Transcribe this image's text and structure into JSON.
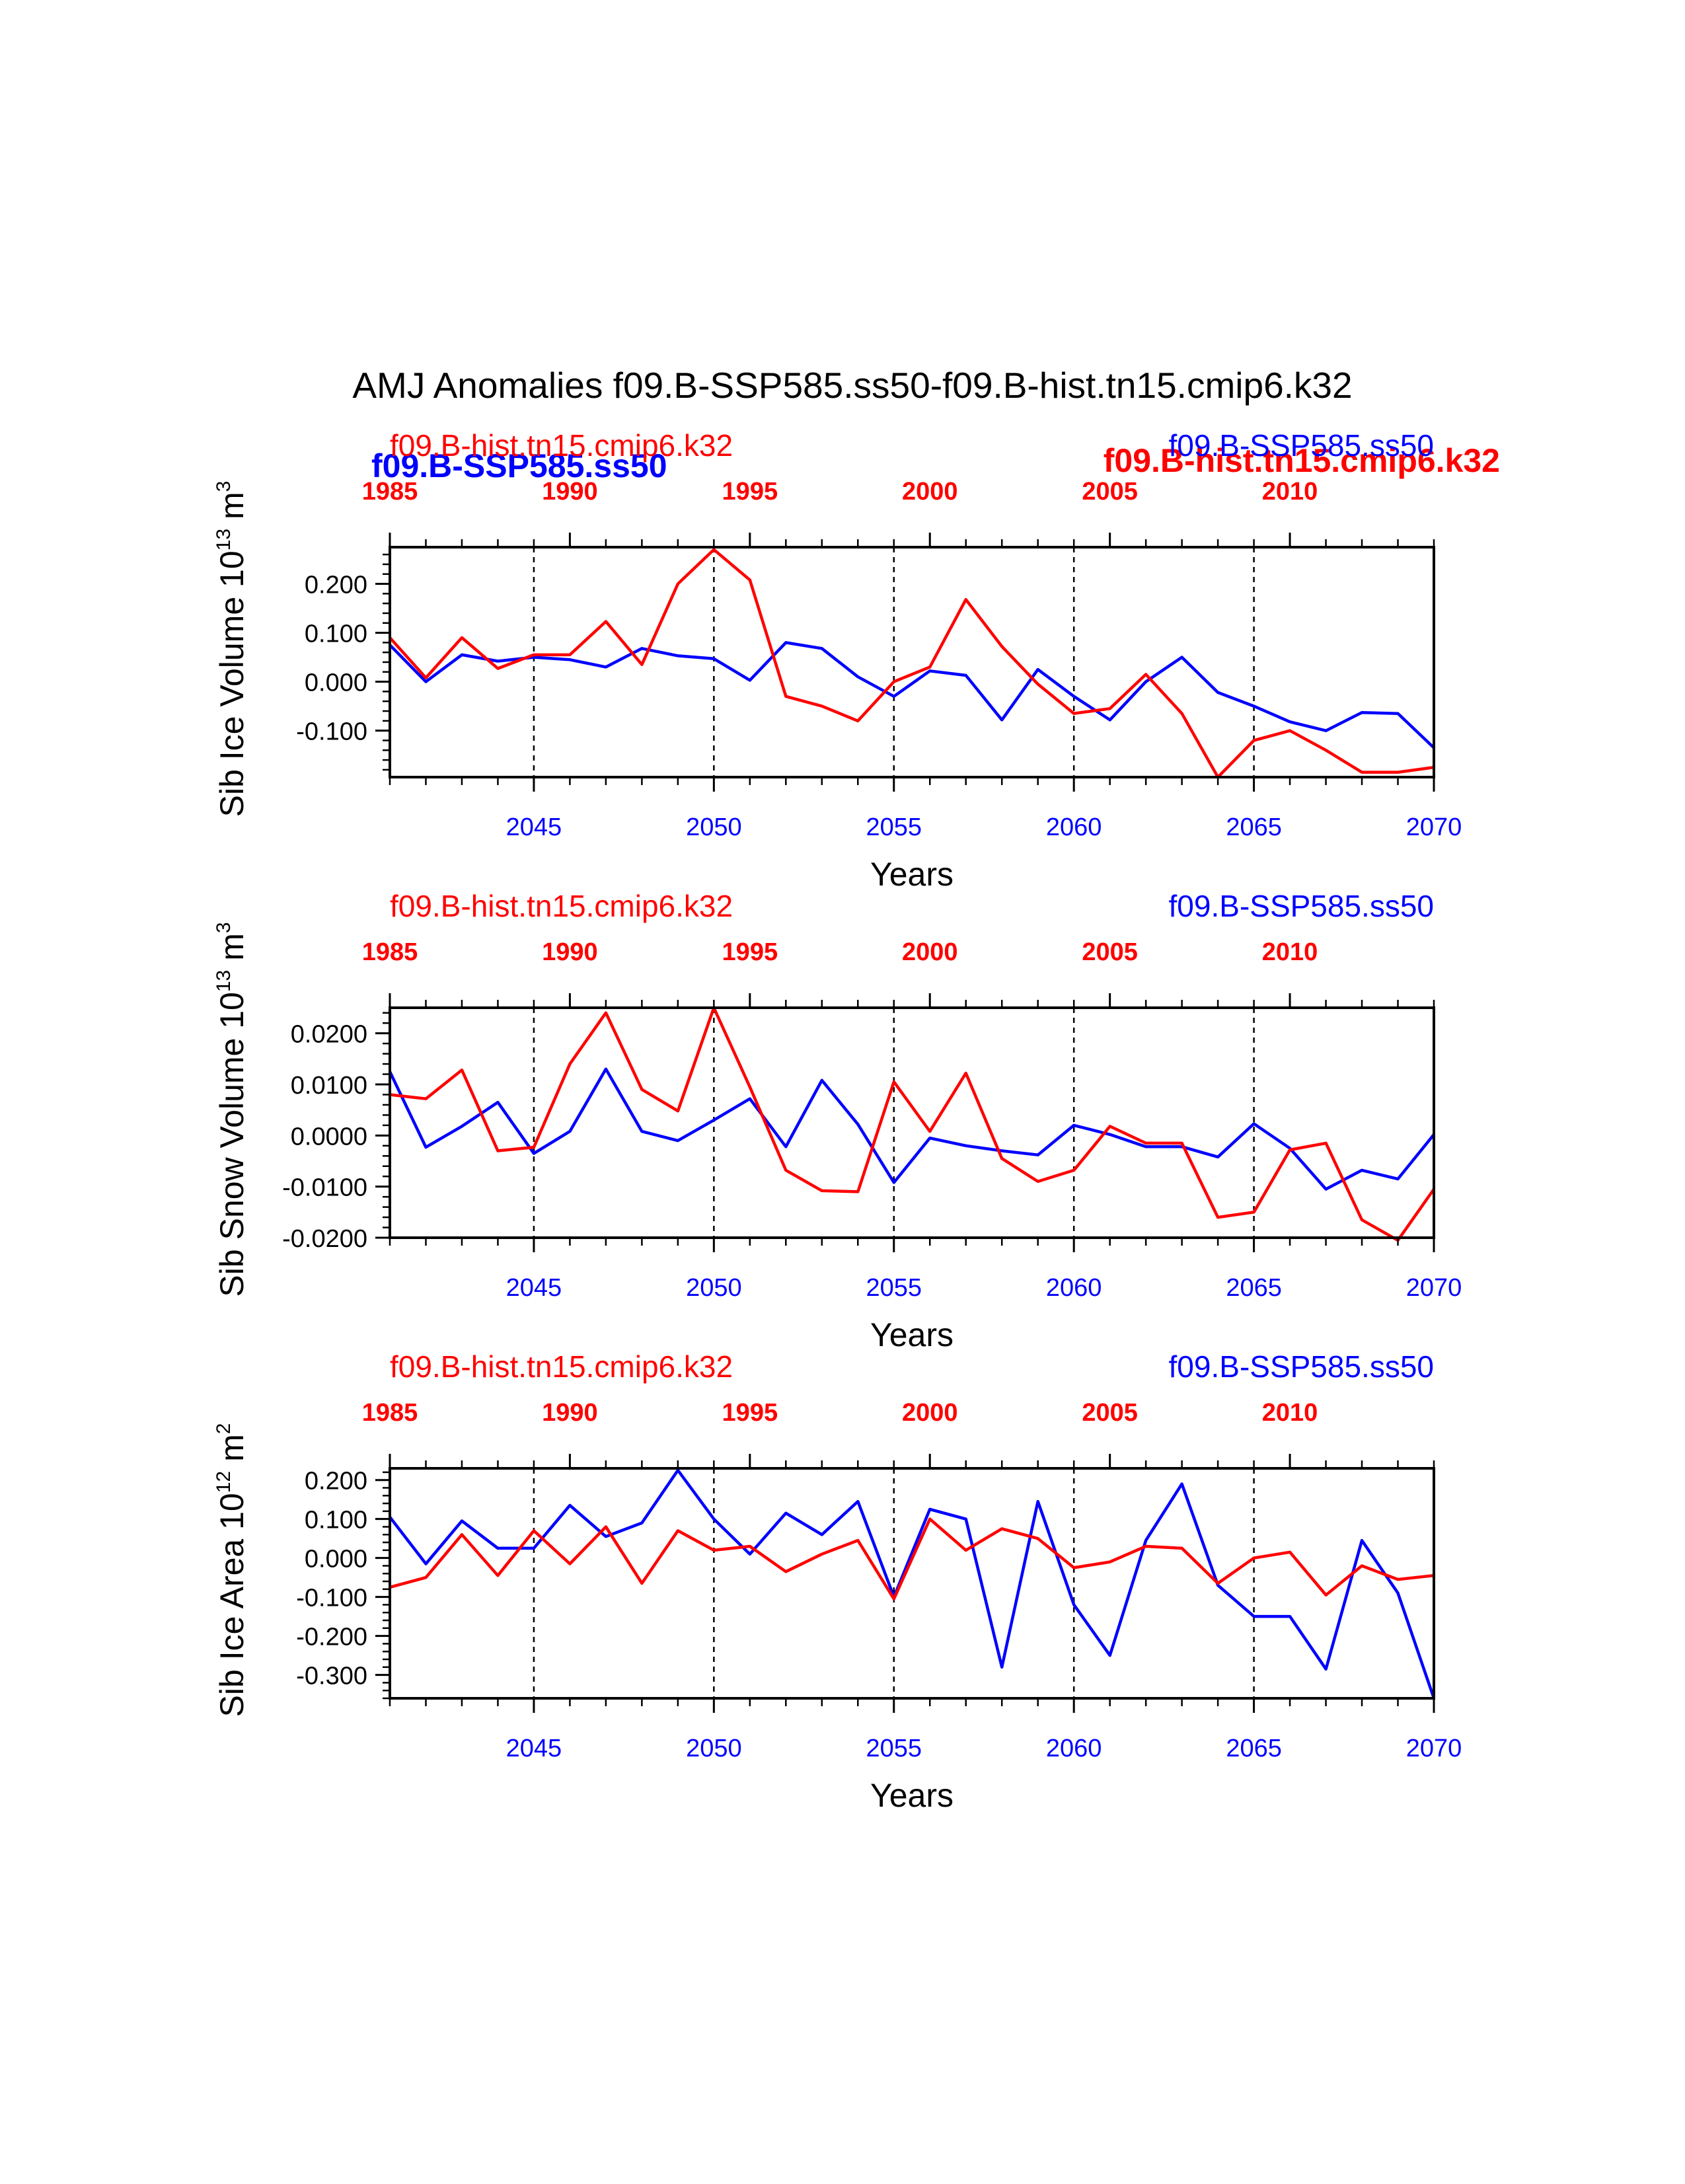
{
  "title": "AMJ Anomalies f09.B-SSP585.ss50-f09.B-hist.tn15.cmip6.k32",
  "colors": {
    "ssp": "#0000ff",
    "hist": "#ff0000",
    "axis": "#000000"
  },
  "top_overlap_labels": {
    "left_bold_blue": "f09.B-SSP585.ss50",
    "right_bold_red": "f09.B-hist.tn15.cmip6.k32"
  },
  "chart_data": [
    {
      "type": "line",
      "ylabel": "Sib Ice Volume 10",
      "ylabel_exp": "13",
      "ylabel_unit": "m",
      "ylabel_unit_exp": "3",
      "xlabel": "Years",
      "ylim": [
        -0.195,
        0.275
      ],
      "yticks": [
        -0.1,
        0.0,
        0.1,
        0.2
      ],
      "ytick_labels": [
        "-0.100",
        "0.000",
        "0.100",
        "0.200"
      ],
      "yminor_step": 0.02,
      "bottom_axis": {
        "range": [
          2041,
          2070
        ],
        "ticks": [
          2045,
          2050,
          2055,
          2060,
          2065,
          2070
        ],
        "labels": [
          "2045",
          "2050",
          "2055",
          "2060",
          "2065",
          "2070"
        ]
      },
      "top_axis": {
        "range": [
          1985,
          2014
        ],
        "ticks": [
          1985,
          1990,
          1995,
          2000,
          2005,
          2010
        ],
        "labels": [
          "1985",
          "1990",
          "1995",
          "2000",
          "2005",
          "2010"
        ]
      },
      "vlines": [
        2045,
        2050,
        2055,
        2060,
        2065
      ],
      "top_left_label": "f09.B-hist.tn15.cmip6.k32",
      "top_right_label": "f09.B-SSP585.ss50",
      "series": [
        {
          "name": "f09.B-SSP585.ss50",
          "axis": "bottom",
          "x": [
            2041,
            2042,
            2043,
            2044,
            2045,
            2046,
            2047,
            2048,
            2049,
            2050,
            2051,
            2052,
            2053,
            2054,
            2055,
            2056,
            2057,
            2058,
            2059,
            2060,
            2061,
            2062,
            2063,
            2064,
            2065,
            2066,
            2067,
            2068,
            2069,
            2070
          ],
          "values": [
            0.075,
            0.0,
            0.055,
            0.042,
            0.05,
            0.045,
            0.03,
            0.068,
            0.053,
            0.047,
            0.003,
            0.08,
            0.068,
            0.01,
            -0.03,
            0.022,
            0.013,
            -0.078,
            0.025,
            -0.03,
            -0.078,
            0.0,
            0.05,
            -0.022,
            -0.05,
            -0.082,
            -0.1,
            -0.063,
            -0.065,
            -0.135
          ]
        },
        {
          "name": "f09.B-hist.tn15.cmip6.k32",
          "axis": "top",
          "x": [
            1985,
            1986,
            1987,
            1988,
            1989,
            1990,
            1991,
            1992,
            1993,
            1994,
            1995,
            1996,
            1997,
            1998,
            1999,
            2000,
            2001,
            2002,
            2003,
            2004,
            2005,
            2006,
            2007,
            2008,
            2009,
            2010,
            2011,
            2012,
            2013,
            2014
          ],
          "values": [
            0.09,
            0.008,
            0.09,
            0.027,
            0.055,
            0.055,
            0.123,
            0.035,
            0.2,
            0.27,
            0.208,
            -0.03,
            -0.05,
            -0.08,
            0.0,
            0.03,
            0.168,
            0.072,
            -0.005,
            -0.065,
            -0.055,
            0.015,
            -0.065,
            -0.195,
            -0.12,
            -0.1,
            -0.14,
            -0.185,
            -0.185,
            -0.175
          ]
        }
      ]
    },
    {
      "type": "line",
      "ylabel": "Sib Snow Volume 10",
      "ylabel_exp": "13",
      "ylabel_unit": "m",
      "ylabel_unit_exp": "3",
      "xlabel": "Years",
      "ylim": [
        -0.02,
        0.025
      ],
      "yticks": [
        -0.02,
        -0.01,
        0.0,
        0.01,
        0.02
      ],
      "ytick_labels": [
        "-0.0200",
        "-0.0100",
        "0.0000",
        "0.0100",
        "0.0200"
      ],
      "yminor_step": 0.002,
      "bottom_axis": {
        "range": [
          2041,
          2070
        ],
        "ticks": [
          2045,
          2050,
          2055,
          2060,
          2065,
          2070
        ],
        "labels": [
          "2045",
          "2050",
          "2055",
          "2060",
          "2065",
          "2070"
        ]
      },
      "top_axis": {
        "range": [
          1985,
          2014
        ],
        "ticks": [
          1985,
          1990,
          1995,
          2000,
          2005,
          2010
        ],
        "labels": [
          "1985",
          "1990",
          "1995",
          "2000",
          "2005",
          "2010"
        ]
      },
      "vlines": [
        2045,
        2050,
        2055,
        2060,
        2065
      ],
      "top_left_label": "f09.B-hist.tn15.cmip6.k32",
      "top_right_label": "f09.B-SSP585.ss50",
      "series": [
        {
          "name": "f09.B-SSP585.ss50",
          "axis": "bottom",
          "x": [
            2041,
            2042,
            2043,
            2044,
            2045,
            2046,
            2047,
            2048,
            2049,
            2050,
            2051,
            2052,
            2053,
            2054,
            2055,
            2056,
            2057,
            2058,
            2059,
            2060,
            2061,
            2062,
            2063,
            2064,
            2065,
            2066,
            2067,
            2068,
            2069,
            2070
          ],
          "values": [
            0.0125,
            -0.0023,
            0.0018,
            0.0065,
            -0.0035,
            0.0008,
            0.013,
            0.0008,
            -0.001,
            0.003,
            0.0072,
            -0.0022,
            0.0108,
            0.0022,
            -0.0092,
            -0.0005,
            -0.002,
            -0.003,
            -0.0038,
            0.002,
            0.0002,
            -0.0022,
            -0.0022,
            -0.0042,
            0.0023,
            -0.0025,
            -0.0105,
            -0.0068,
            -0.0085,
            0.0002
          ]
        },
        {
          "name": "f09.B-hist.tn15.cmip6.k32",
          "axis": "top",
          "x": [
            1985,
            1986,
            1987,
            1988,
            1989,
            1990,
            1991,
            1992,
            1993,
            1994,
            1995,
            1996,
            1997,
            1998,
            1999,
            2000,
            2001,
            2002,
            2003,
            2004,
            2005,
            2006,
            2007,
            2008,
            2009,
            2010,
            2011,
            2012,
            2013,
            2014
          ],
          "values": [
            0.008,
            0.0072,
            0.0128,
            -0.003,
            -0.0023,
            0.014,
            0.024,
            0.009,
            0.0048,
            0.025,
            0.0095,
            -0.0068,
            -0.0108,
            -0.011,
            0.0105,
            0.0008,
            0.0122,
            -0.0045,
            -0.009,
            -0.0068,
            0.0018,
            -0.0015,
            -0.0015,
            -0.016,
            -0.015,
            -0.0028,
            -0.0015,
            -0.0165,
            -0.0205,
            -0.0105
          ]
        }
      ]
    },
    {
      "type": "line",
      "ylabel": "Sib Ice Area 10",
      "ylabel_exp": "12",
      "ylabel_unit": "m",
      "ylabel_unit_exp": "2",
      "xlabel": "Years",
      "ylim": [
        -0.36,
        0.23
      ],
      "yticks": [
        -0.3,
        -0.2,
        -0.1,
        0.0,
        0.1,
        0.2
      ],
      "ytick_labels": [
        "-0.300",
        "-0.200",
        "-0.100",
        "0.000",
        "0.100",
        "0.200"
      ],
      "yminor_step": 0.02,
      "bottom_axis": {
        "range": [
          2041,
          2070
        ],
        "ticks": [
          2045,
          2050,
          2055,
          2060,
          2065,
          2070
        ],
        "labels": [
          "2045",
          "2050",
          "2055",
          "2060",
          "2065",
          "2070"
        ]
      },
      "top_axis": {
        "range": [
          1985,
          2014
        ],
        "ticks": [
          1985,
          1990,
          1995,
          2000,
          2005,
          2010
        ],
        "labels": [
          "1985",
          "1990",
          "1995",
          "2000",
          "2005",
          "2010"
        ]
      },
      "vlines": [
        2045,
        2050,
        2055,
        2060,
        2065
      ],
      "top_left_label": "f09.B-hist.tn15.cmip6.k32",
      "top_right_label": "f09.B-SSP585.ss50",
      "series": [
        {
          "name": "f09.B-SSP585.ss50",
          "axis": "bottom",
          "x": [
            2041,
            2042,
            2043,
            2044,
            2045,
            2046,
            2047,
            2048,
            2049,
            2050,
            2051,
            2052,
            2053,
            2054,
            2055,
            2056,
            2057,
            2058,
            2059,
            2060,
            2061,
            2062,
            2063,
            2064,
            2065,
            2066,
            2067,
            2068,
            2069,
            2070
          ],
          "values": [
            0.105,
            -0.015,
            0.095,
            0.025,
            0.025,
            0.135,
            0.055,
            0.09,
            0.225,
            0.1,
            0.01,
            0.115,
            0.06,
            0.145,
            -0.1,
            0.125,
            0.1,
            -0.28,
            0.145,
            -0.12,
            -0.25,
            0.045,
            0.19,
            -0.07,
            -0.15,
            -0.15,
            -0.285,
            0.045,
            -0.09,
            -0.36
          ]
        },
        {
          "name": "f09.B-hist.tn15.cmip6.k32",
          "axis": "top",
          "x": [
            1985,
            1986,
            1987,
            1988,
            1989,
            1990,
            1991,
            1992,
            1993,
            1994,
            1995,
            1996,
            1997,
            1998,
            1999,
            2000,
            2001,
            2002,
            2003,
            2004,
            2005,
            2006,
            2007,
            2008,
            2009,
            2010,
            2011,
            2012,
            2013,
            2014
          ],
          "values": [
            -0.075,
            -0.05,
            0.06,
            -0.045,
            0.07,
            -0.015,
            0.08,
            -0.065,
            0.07,
            0.02,
            0.03,
            -0.035,
            0.01,
            0.045,
            -0.105,
            0.1,
            0.02,
            0.075,
            0.05,
            -0.025,
            -0.01,
            0.03,
            0.025,
            -0.065,
            0.0,
            0.015,
            -0.095,
            -0.02,
            -0.055,
            -0.045
          ]
        }
      ]
    }
  ]
}
